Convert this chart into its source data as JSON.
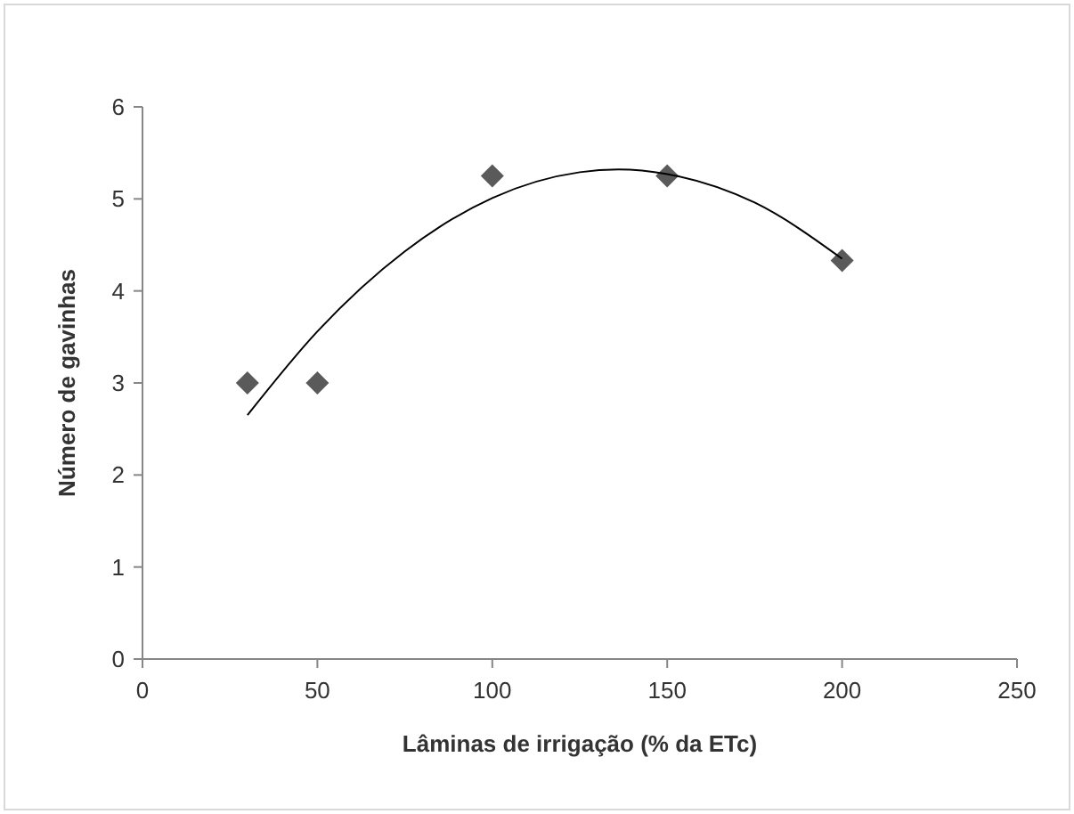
{
  "chart_data": {
    "type": "scatter",
    "xlabel": "Lâminas de irrigação (% da ETc)",
    "ylabel": "Número de gavinhas",
    "marker": "diamond",
    "grid": false,
    "xlim": [
      0,
      250
    ],
    "xticks": [
      0,
      50,
      100,
      150,
      200,
      250
    ],
    "ylim": [
      0,
      6
    ],
    "yticks": [
      0,
      1,
      2,
      3,
      4,
      5,
      6
    ],
    "series": [
      {
        "color": "#5a5a5a",
        "x": [
          30,
          50,
          100,
          150,
          200
        ],
        "values": [
          3,
          3,
          5.25,
          5.25,
          4.33
        ]
      },
      {
        "type": "line",
        "color": "#000000",
        "marker": "none",
        "x": [
          30,
          50,
          75,
          100,
          125,
          136,
          150,
          175,
          200
        ],
        "values": [
          2.65,
          3.56,
          4.43,
          5.01,
          5.29,
          5.32,
          5.27,
          4.96,
          4.35
        ]
      }
    ]
  }
}
